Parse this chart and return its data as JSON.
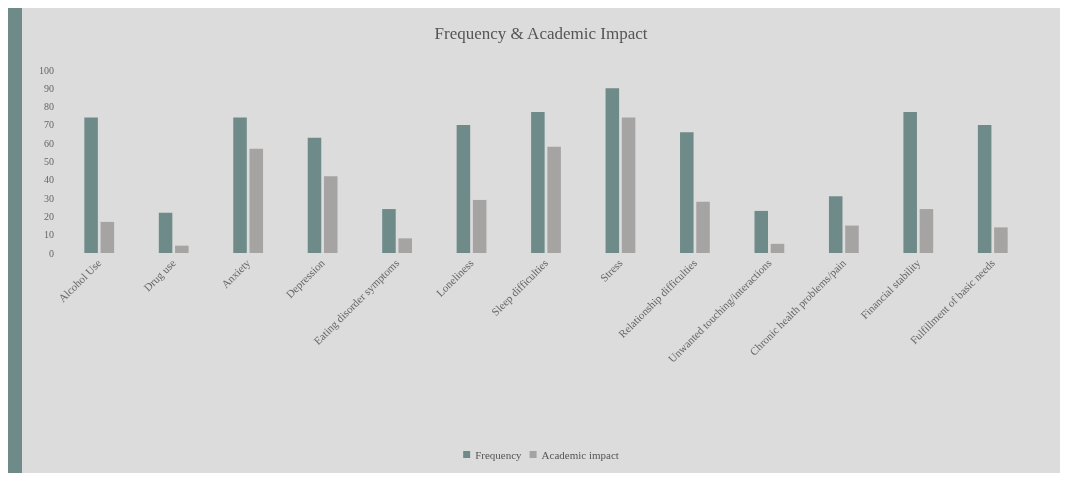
{
  "chart_data": {
    "type": "bar",
    "title": "Frequency & Academic Impact",
    "categories": [
      "Alcohol Use",
      "Drug use",
      "Anxiety",
      "Depression",
      "Eating disorder symptoms",
      "Loneliness",
      "Sleep difficulties",
      "Stress",
      "Relationship difficulties",
      "Unwanted touching/interactions",
      "Chronic health problems/pain",
      "Financial stability",
      "Fulfillment of basic needs"
    ],
    "series": [
      {
        "name": "Frequency",
        "color": "#6f8b89",
        "values": [
          74,
          22,
          74,
          63,
          24,
          70,
          77,
          90,
          66,
          23,
          31,
          77,
          70
        ]
      },
      {
        "name": "Academic impact",
        "color": "#a6a3a3",
        "values": [
          17,
          4,
          57,
          42,
          8,
          29,
          58,
          74,
          28,
          5,
          15,
          24,
          14
        ]
      }
    ],
    "ylim": [
      0,
      100
    ],
    "yticks": [
      0,
      10,
      20,
      30,
      40,
      50,
      60,
      70,
      80,
      90,
      100
    ],
    "grid": false,
    "legend": "bottom"
  }
}
